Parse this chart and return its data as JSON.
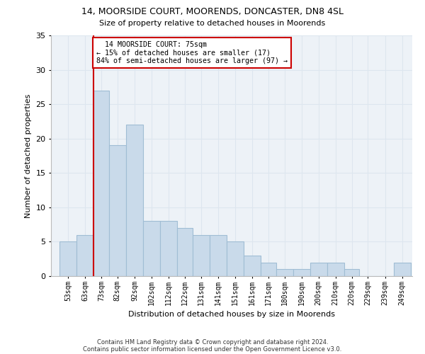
{
  "title1": "14, MOORSIDE COURT, MOORENDS, DONCASTER, DN8 4SL",
  "title2": "Size of property relative to detached houses in Moorends",
  "xlabel": "Distribution of detached houses by size in Moorends",
  "ylabel": "Number of detached properties",
  "categories": [
    "53sqm",
    "63sqm",
    "73sqm",
    "82sqm",
    "92sqm",
    "102sqm",
    "112sqm",
    "122sqm",
    "131sqm",
    "141sqm",
    "151sqm",
    "161sqm",
    "171sqm",
    "180sqm",
    "190sqm",
    "200sqm",
    "210sqm",
    "220sqm",
    "229sqm",
    "239sqm",
    "249sqm"
  ],
  "values": [
    5,
    6,
    27,
    19,
    22,
    8,
    8,
    7,
    6,
    6,
    5,
    3,
    2,
    1,
    1,
    2,
    2,
    1,
    0,
    0,
    2
  ],
  "bar_color": "#c9daea",
  "bar_edge_color": "#a0bdd4",
  "property_label": "14 MOORSIDE COURT: 75sqm",
  "pct_smaller": "15% of detached houses are smaller (17)",
  "pct_larger": "84% of semi-detached houses are larger (97)",
  "bin_starts": [
    53,
    63,
    73,
    82,
    92,
    102,
    112,
    122,
    131,
    141,
    151,
    161,
    171,
    180,
    190,
    200,
    210,
    220,
    229,
    239,
    249
  ],
  "ylim": [
    0,
    35
  ],
  "yticks": [
    0,
    5,
    10,
    15,
    20,
    25,
    30,
    35
  ],
  "grid_color": "#dde6ef",
  "vline_color": "#cc0000",
  "footnote1": "Contains HM Land Registry data © Crown copyright and database right 2024.",
  "footnote2": "Contains public sector information licensed under the Open Government Licence v3.0.",
  "bg_color": "#edf2f7"
}
